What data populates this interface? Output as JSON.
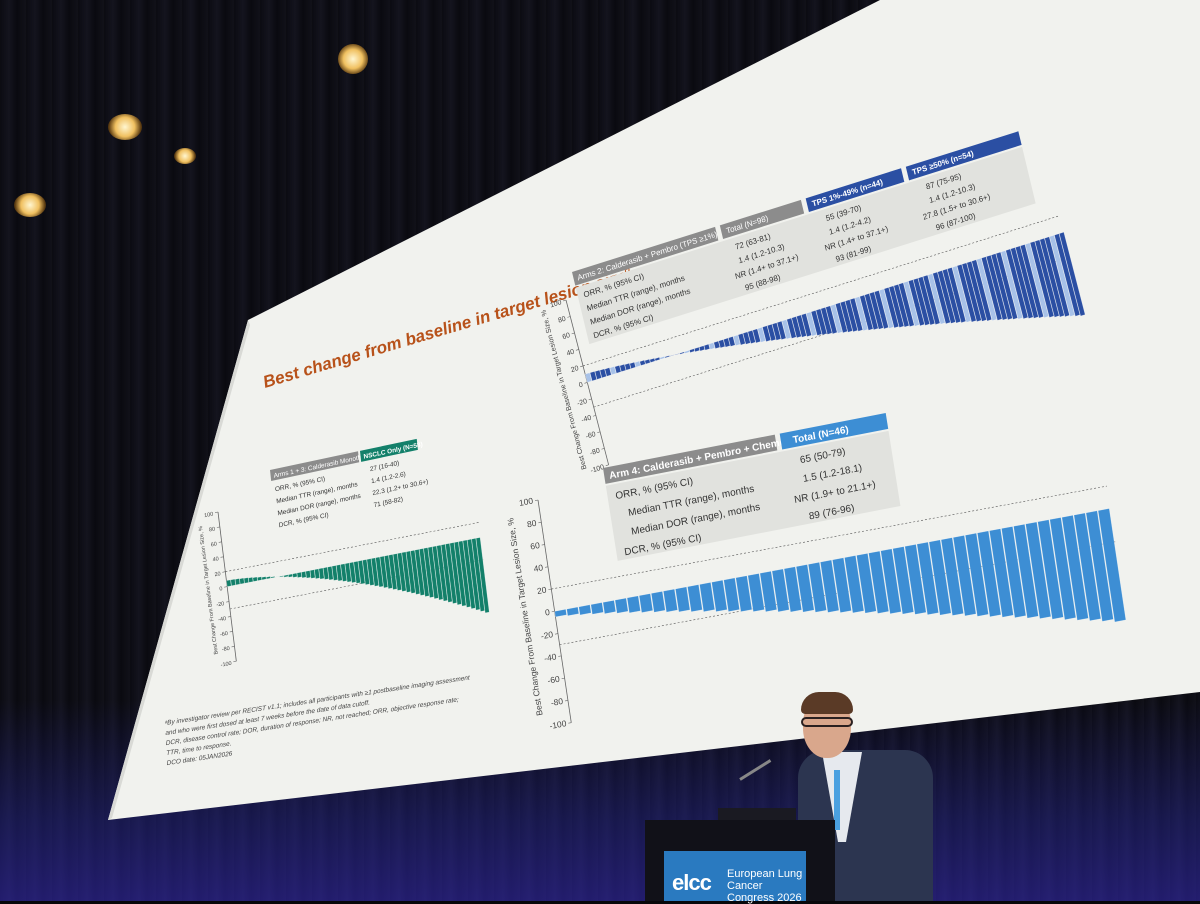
{
  "slide": {
    "title": "Best change from baseline in target lesion size",
    "title_sup": "a",
    "colors": {
      "title": "#b8521a",
      "teal": "#13806a",
      "navy": "#2b4fa3",
      "light_blue": "#3d8ed4",
      "header_gray": "#8c8c8c",
      "slide_bg": "#f1f2ee"
    },
    "left_panel": {
      "header": "Arms 1 + 3: Calderasib Monotherapy",
      "col_header": "NSCLC Only (N=58)",
      "rows": [
        {
          "label": "ORR, % (95% CI)",
          "value": "27 (16-40)"
        },
        {
          "label": "Median TTR (range), months",
          "value": "1.4 (1.2-2.6)"
        },
        {
          "label": "Median DOR (range), months",
          "value": "22.3 (1.2+ to 30.6+)"
        },
        {
          "label": "DCR, % (95% CI)",
          "value": "71 (58-82)"
        }
      ],
      "y_axis_label": "Best Change From Baseline in Target Lesion Size, %",
      "ticks": [
        "100",
        "80",
        "60",
        "40",
        "20",
        "0",
        "-20",
        "-40",
        "-60",
        "-80",
        "-100"
      ]
    },
    "top_right_panel": {
      "header": "Arms 2: Calderasib + Pembro (TPS ≥1%)",
      "col_headers": [
        "Total (N=98)",
        "TPS 1%-49% (n=44)",
        "TPS ≥50% (n=54)"
      ],
      "rows": [
        {
          "label": "ORR, % (95% CI)",
          "values": [
            "72 (63-81)",
            "55 (39-70)",
            "87 (75-95)"
          ]
        },
        {
          "label": "Median TTR (range), months",
          "values": [
            "1.4 (1.2-10.3)",
            "1.4 (1.2-4.2)",
            "1.4 (1.2-10.3)"
          ]
        },
        {
          "label": "Median DOR (range), months",
          "values": [
            "NR (1.4+ to 37.1+)",
            "NR (1.4+ to 37.1+)",
            "27.8 (1.5+ to 30.6+)"
          ]
        },
        {
          "label": "DCR, % (95% CI)",
          "values": [
            "95 (88-98)",
            "93 (81-99)",
            "96 (87-100)"
          ]
        }
      ],
      "y_axis_label": "Best Change From Baseline in Target Lesion Size, %",
      "ticks": [
        "100",
        "80",
        "60",
        "40",
        "20",
        "0",
        "-20",
        "-40",
        "-60",
        "-80",
        "-100"
      ]
    },
    "bottom_right_panel": {
      "header": "Arm 4: Calderasib + Pembro + Chemo",
      "col_header": "Total (N=46)",
      "rows": [
        {
          "label": "ORR, % (95% CI)",
          "value": "65 (50-79)"
        },
        {
          "label": "Median TTR (range), months",
          "value": "1.5 (1.2-18.1)"
        },
        {
          "label": "Median DOR (range), months",
          "value": "NR (1.9+ to 21.1+)"
        },
        {
          "label": "DCR, % (95% CI)",
          "value": "89 (76-96)"
        }
      ],
      "y_axis_label": "Best Change From Baseline in Target Lesion Size, %",
      "ticks": [
        "100",
        "80",
        "60",
        "40",
        "20",
        "0",
        "-20",
        "-40",
        "-60",
        "-80",
        "-100"
      ]
    },
    "footnotes": [
      "ᵃBy investigator review per RECIST v1.1; includes all participants with ≥1 postbaseline imaging assessment",
      "and who were first dosed at least 7 weeks before the date of data cutoff.",
      "DCR, disease control rate; DOR, duration of response; NR, not reached; ORR, objective response rate;",
      "TTR, time to response.",
      "DCO date: 05JAN2026"
    ]
  },
  "podium": {
    "logo": "elcc",
    "text_line1": "European Lung",
    "text_line2": "Cancer Congress 2026"
  }
}
